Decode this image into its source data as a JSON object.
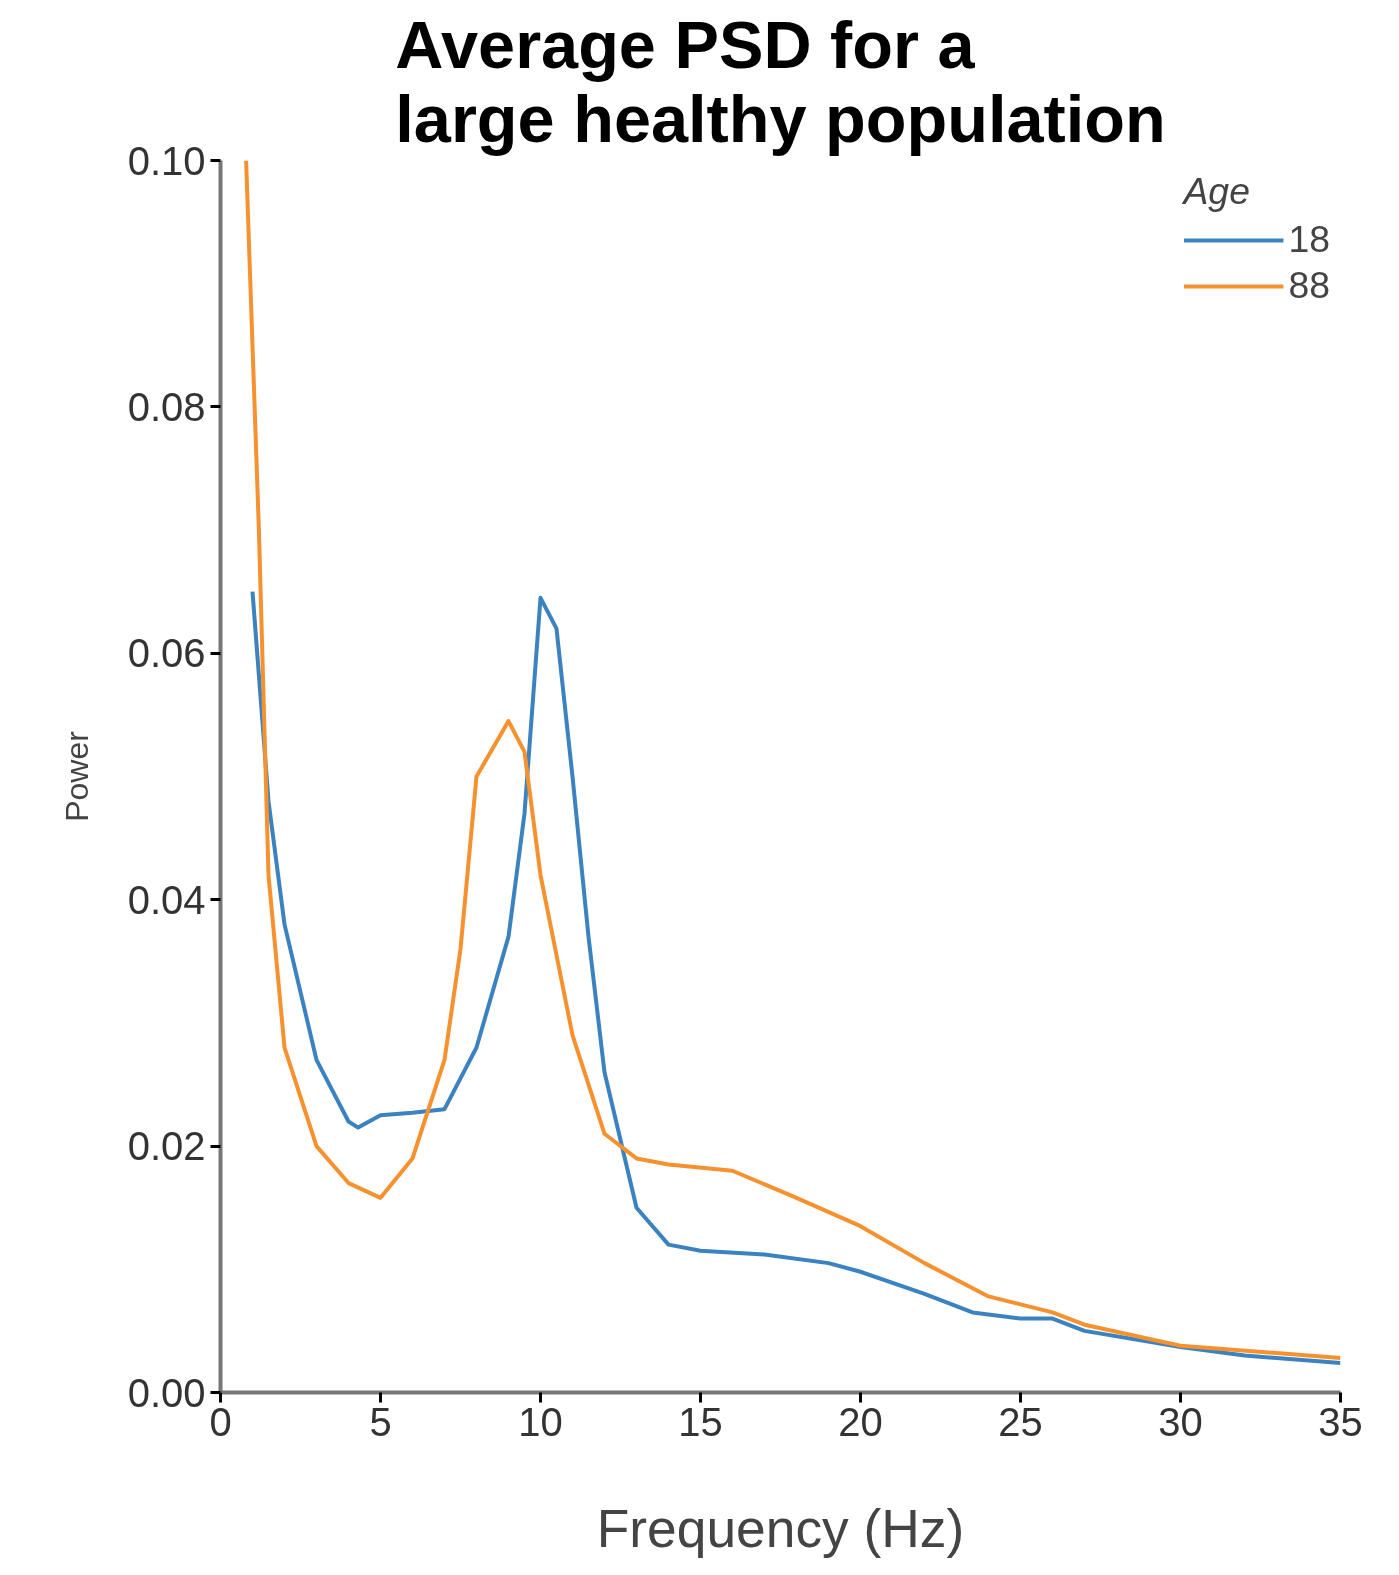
{
  "chart_data": {
    "type": "line",
    "title": "Average PSD for a\nlarge healthy population",
    "xlabel": "Frequency (Hz)",
    "ylabel": "Power",
    "legend_title": "Age",
    "legend": "top right",
    "grid": false,
    "xlim": [
      0,
      35
    ],
    "ylim": [
      0,
      0.1
    ],
    "xticks": [
      0,
      5,
      10,
      15,
      20,
      25,
      30,
      35
    ],
    "yticks": [
      {
        "value": 0,
        "label": "0.00"
      },
      {
        "value": 0.02,
        "label": "0.02"
      },
      {
        "value": 0.04,
        "label": "0.04"
      },
      {
        "value": 0.06,
        "label": "0.06"
      },
      {
        "value": 0.08,
        "label": "0.08"
      },
      {
        "value": 0.1,
        "label": "0.10"
      }
    ],
    "series": [
      {
        "name": "18",
        "color": "#3b82c0",
        "x": [
          1,
          1.5,
          2,
          3,
          4,
          4.3,
          5,
          6,
          7,
          8,
          9,
          9.5,
          10,
          10.5,
          11,
          11.5,
          12,
          13,
          14,
          15,
          17,
          19,
          20,
          22,
          23.5,
          25,
          26,
          27,
          30,
          32,
          35
        ],
        "values": [
          0.065,
          0.048,
          0.038,
          0.027,
          0.022,
          0.0215,
          0.0225,
          0.0227,
          0.023,
          0.028,
          0.037,
          0.047,
          0.0645,
          0.062,
          0.05,
          0.037,
          0.026,
          0.015,
          0.012,
          0.0115,
          0.0112,
          0.0105,
          0.0098,
          0.008,
          0.0065,
          0.006,
          0.006,
          0.005,
          0.0037,
          0.003,
          0.0024
        ]
      },
      {
        "name": "88",
        "color": "#f5922f",
        "x": [
          0.8,
          1.2,
          1.5,
          2,
          3,
          4,
          5,
          6,
          7,
          7.5,
          8,
          9,
          9.5,
          10,
          11,
          12,
          13,
          14,
          16,
          18,
          20,
          22,
          24,
          26,
          27,
          30,
          35
        ],
        "values": [
          0.1,
          0.07,
          0.042,
          0.028,
          0.02,
          0.017,
          0.0158,
          0.019,
          0.027,
          0.036,
          0.05,
          0.0545,
          0.052,
          0.042,
          0.029,
          0.021,
          0.019,
          0.0185,
          0.018,
          0.0158,
          0.0135,
          0.0105,
          0.0078,
          0.0065,
          0.0055,
          0.0038,
          0.0028
        ]
      }
    ]
  }
}
